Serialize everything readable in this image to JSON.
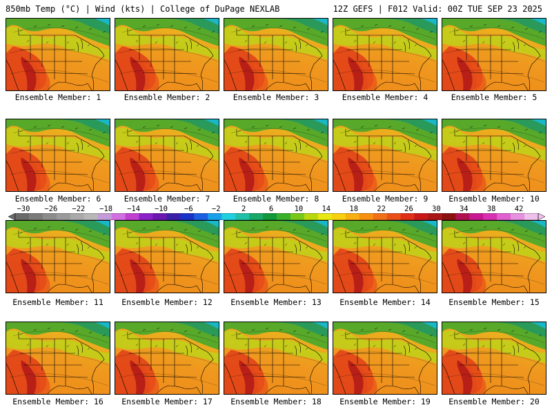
{
  "header": {
    "left_title": "850mb Temp (°C) | Wind (kts) | College of DuPage NEXLAB",
    "right_title": "12Z GEFS | F012 Valid: 00Z TUE SEP 23 2025"
  },
  "panels": [
    {
      "label": "Ensemble Member: 1"
    },
    {
      "label": "Ensemble Member: 2"
    },
    {
      "label": "Ensemble Member: 3"
    },
    {
      "label": "Ensemble Member: 4"
    },
    {
      "label": "Ensemble Member: 5"
    },
    {
      "label": "Ensemble Member: 6"
    },
    {
      "label": "Ensemble Member: 7"
    },
    {
      "label": "Ensemble Member: 8"
    },
    {
      "label": "Ensemble Member: 9"
    },
    {
      "label": "Ensemble Member: 10"
    },
    {
      "label": "Ensemble Member: 11"
    },
    {
      "label": "Ensemble Member: 12"
    },
    {
      "label": "Ensemble Member: 13"
    },
    {
      "label": "Ensemble Member: 14"
    },
    {
      "label": "Ensemble Member: 15"
    },
    {
      "label": "Ensemble Member: 16"
    },
    {
      "label": "Ensemble Member: 17"
    },
    {
      "label": "Ensemble Member: 18"
    },
    {
      "label": "Ensemble Member: 19"
    },
    {
      "label": "Ensemble Member: 20"
    }
  ],
  "colorbar": {
    "labels": [
      "−30",
      "−26",
      "−22",
      "−18",
      "−14",
      "−10",
      "−6",
      "−2",
      "2",
      "6",
      "10",
      "14",
      "18",
      "22",
      "26",
      "30",
      "34",
      "38",
      "42"
    ],
    "colors": [
      "#6a6a6a",
      "#7a7a7a",
      "#8c8c8c",
      "#9a9a9a",
      "#aaaaaa",
      "#b8b8b8",
      "#c49ad8",
      "#d070e0",
      "#c040d0",
      "#8a20c8",
      "#6a18b0",
      "#3a20a8",
      "#1a34c8",
      "#1a60e0",
      "#18a0e8",
      "#20d0e0",
      "#20c0a8",
      "#18a868",
      "#10983a",
      "#38b02a",
      "#78c81a",
      "#b8d810",
      "#e8e810",
      "#f8d010",
      "#f8b010",
      "#f89010",
      "#f07018",
      "#e85018",
      "#e03018",
      "#c81818",
      "#a81818",
      "#8c1010",
      "#b01050",
      "#c81890",
      "#d830b0",
      "#e060d0",
      "#e890e0",
      "#f0c0ec"
    ]
  }
}
